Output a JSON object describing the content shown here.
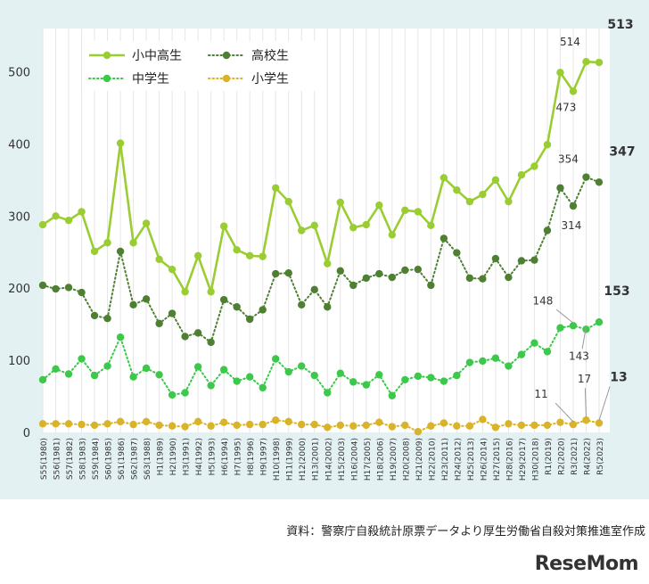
{
  "source_note": "資料：警察庁自殺統計原票データより厚生労働省自殺対策推進室作成",
  "logo_text": "ReseMom",
  "chart_data": {
    "type": "line",
    "title": "",
    "xlabel": "",
    "ylabel": "",
    "ylim": [
      0,
      560
    ],
    "yticks": [
      0,
      100,
      200,
      300,
      400,
      500
    ],
    "grid": "vertical",
    "legend_placement": "top-left",
    "categories": [
      "S55(1980)",
      "S56(1981)",
      "S57(1982)",
      "S58(1983)",
      "S59(1984)",
      "S60(1985)",
      "S61(1986)",
      "S62(1987)",
      "S63(1988)",
      "H1(1989)",
      "H2(1990)",
      "H3(1991)",
      "H4(1992)",
      "H5(1993)",
      "H6(1994)",
      "H7(1995)",
      "H8(1996)",
      "H9(1997)",
      "H10(1998)",
      "H11(1999)",
      "H12(2000)",
      "H13(2001)",
      "H14(2002)",
      "H15(2003)",
      "H16(2004)",
      "H17(2005)",
      "H18(2006)",
      "H19(2007)",
      "H20(2008)",
      "H21(2009)",
      "H22(2010)",
      "H23(2011)",
      "H24(2012)",
      "H25(2013)",
      "H26(2014)",
      "H27(2015)",
      "H28(2016)",
      "H29(2017)",
      "H30(2018)",
      "R1(2019)",
      "R2(2020)",
      "R3(2021)",
      "R4(2022)",
      "R5(2023)"
    ],
    "series": [
      {
        "name": "小中高生",
        "color": "#9acd32",
        "style": "solid",
        "values": [
          288,
          300,
          294,
          306,
          251,
          263,
          401,
          263,
          290,
          240,
          226,
          195,
          245,
          195,
          286,
          253,
          245,
          244,
          339,
          320,
          280,
          287,
          234,
          319,
          284,
          288,
          315,
          274,
          308,
          306,
          287,
          353,
          336,
          320,
          330,
          350,
          320,
          357,
          369,
          399,
          499,
          473,
          514,
          513
        ]
      },
      {
        "name": "高校生",
        "color": "#4e7f33",
        "style": "dotted",
        "values": [
          204,
          199,
          201,
          194,
          162,
          158,
          251,
          177,
          185,
          151,
          165,
          133,
          138,
          125,
          184,
          174,
          157,
          170,
          220,
          221,
          177,
          198,
          174,
          224,
          204,
          214,
          220,
          215,
          225,
          226,
          204,
          269,
          249,
          214,
          213,
          241,
          215,
          238,
          239,
          280,
          339,
          314,
          354,
          347
        ]
      },
      {
        "name": "中学生",
        "color": "#3cc84a",
        "style": "dotted",
        "values": [
          73,
          88,
          81,
          102,
          79,
          92,
          132,
          77,
          89,
          80,
          52,
          55,
          91,
          65,
          87,
          71,
          77,
          62,
          102,
          84,
          92,
          79,
          55,
          82,
          70,
          66,
          80,
          51,
          73,
          78,
          76,
          71,
          79,
          97,
          99,
          103,
          92,
          108,
          124,
          112,
          145,
          148,
          143,
          153
        ]
      },
      {
        "name": "小学生",
        "color": "#d9b42a",
        "style": "dotted",
        "values": [
          12,
          12,
          12,
          11,
          10,
          12,
          15,
          11,
          15,
          10,
          9,
          8,
          15,
          9,
          14,
          10,
          11,
          11,
          17,
          15,
          11,
          11,
          7,
          10,
          9,
          10,
          14,
          8,
          10,
          1,
          9,
          13,
          9,
          9,
          18,
          7,
          12,
          10,
          10,
          10,
          14,
          11,
          17,
          13
        ]
      }
    ],
    "annotations": [
      {
        "series": 0,
        "index": 42,
        "text": "514",
        "bold": false
      },
      {
        "series": 0,
        "index": 41,
        "text": "473",
        "bold": false
      },
      {
        "series": 0,
        "index": 43,
        "text": "513",
        "bold": true
      },
      {
        "series": 1,
        "index": 42,
        "text": "354",
        "bold": false
      },
      {
        "series": 1,
        "index": 41,
        "text": "314",
        "bold": false
      },
      {
        "series": 1,
        "index": 43,
        "text": "347",
        "bold": true
      },
      {
        "series": 2,
        "index": 41,
        "text": "148",
        "bold": false
      },
      {
        "series": 2,
        "index": 42,
        "text": "143",
        "bold": false
      },
      {
        "series": 2,
        "index": 43,
        "text": "153",
        "bold": true
      },
      {
        "series": 3,
        "index": 41,
        "text": "11",
        "bold": false
      },
      {
        "series": 3,
        "index": 42,
        "text": "17",
        "bold": false
      },
      {
        "series": 3,
        "index": 43,
        "text": "13",
        "bold": true
      }
    ]
  }
}
